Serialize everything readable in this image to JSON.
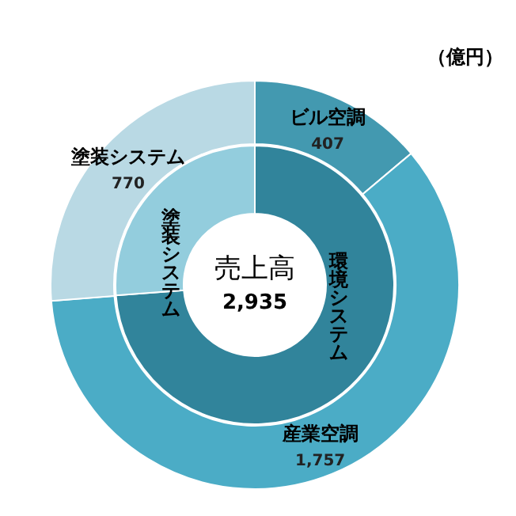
{
  "chart_data": [
    {
      "type": "donut",
      "categories": [
        "ビル空調",
        "産業空調",
        "塗装システム"
      ],
      "values": [
        407,
        1757,
        770
      ],
      "colors": [
        "#4399b0",
        "#4bacc6",
        "#b9d9e4"
      ],
      "data_labels": true,
      "value_labels": [
        "407",
        "1,757",
        "770"
      ],
      "annotations": [
        "（億円）"
      ]
    },
    {
      "type": "donut",
      "categories": [
        "環境システム",
        "塗装システム"
      ],
      "values": [
        73.8,
        26.2
      ],
      "colors": [
        "#31849b",
        "#93cddd"
      ],
      "annotations": [
        "売上高",
        "2,935"
      ]
    }
  ]
}
